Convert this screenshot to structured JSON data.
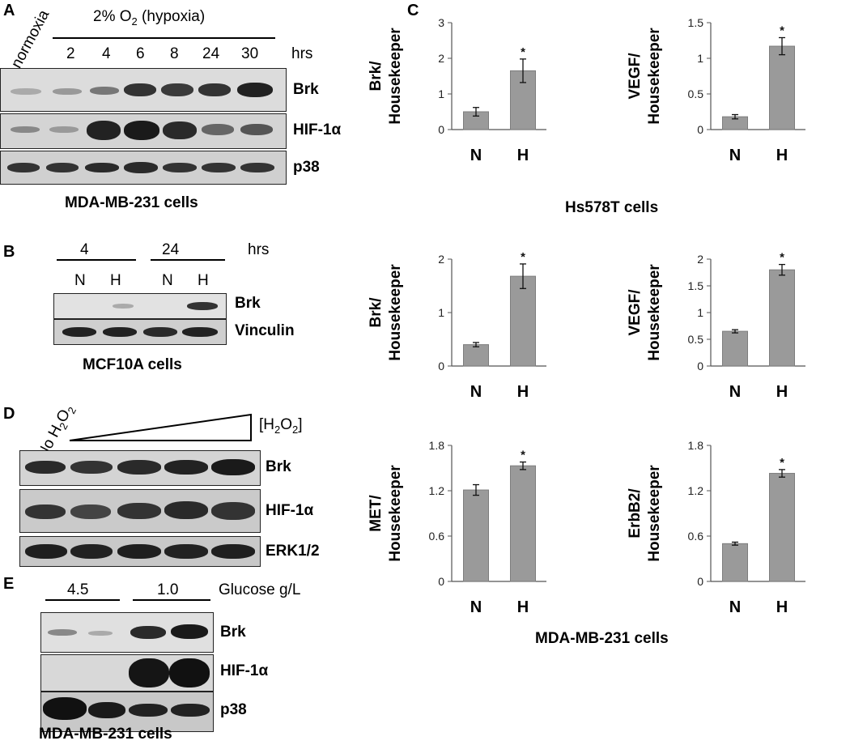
{
  "panels": {
    "A": {
      "letter": "A",
      "normoxia_label": "normoxia",
      "hypoxia_label_pre": "2% O",
      "hypoxia_label_sub": "2",
      "hypoxia_label_post": " (hypoxia)",
      "timepoints": [
        "2",
        "4",
        "6",
        "8",
        "24",
        "30"
      ],
      "unit": "hrs",
      "blots": [
        "Brk",
        "HIF-1α",
        "p38"
      ],
      "cell_line": "MDA-MB-231 cells"
    },
    "B": {
      "letter": "B",
      "time_groups": [
        "4",
        "24"
      ],
      "unit": "hrs",
      "lanes": [
        "N",
        "H",
        "N",
        "H"
      ],
      "blots": [
        "Brk",
        "Vinculin"
      ],
      "cell_line": "MCF10A cells"
    },
    "C": {
      "letter": "C",
      "hs578t_label": "Hs578T cells",
      "mda_label": "MDA-MB-231 cells"
    },
    "D": {
      "letter": "D",
      "no_h2o2_pre": "No H",
      "no_h2o2_sub1": "2",
      "no_h2o2_mid": "O",
      "no_h2o2_sub2": "2",
      "conc_pre": "[H",
      "conc_sub1": "2",
      "conc_mid": "O",
      "conc_sub2": "2",
      "conc_post": "]",
      "blots": [
        "Brk",
        "HIF-1α",
        "ERK1/2"
      ]
    },
    "E": {
      "letter": "E",
      "glucose_groups": [
        "4.5",
        "1.0"
      ],
      "glucose_unit": "Glucose g/L",
      "blots": [
        "Brk",
        "HIF-1α",
        "p38"
      ],
      "cell_line": "MDA-MB-231 cells"
    }
  },
  "chart_data": [
    {
      "type": "bar",
      "id": "hs578t-brk",
      "categories": [
        "N",
        "H"
      ],
      "values": [
        0.5,
        1.65
      ],
      "errors": [
        0.12,
        0.33
      ],
      "significance": [
        "",
        "*"
      ],
      "ylabel_line1": "Brk/",
      "ylabel_line2": "Housekeeper",
      "ylim": [
        0,
        3
      ],
      "yticks": [
        "0",
        "1",
        "2",
        "3"
      ],
      "yticks_values": [
        0,
        1,
        2,
        3
      ]
    },
    {
      "type": "bar",
      "id": "hs578t-vegf",
      "categories": [
        "N",
        "H"
      ],
      "values": [
        0.18,
        1.17
      ],
      "errors": [
        0.03,
        0.12
      ],
      "significance": [
        "",
        "*"
      ],
      "ylabel_line1": "VEGF/",
      "ylabel_line2": "Housekeeper",
      "ylim": [
        0,
        1.5
      ],
      "yticks": [
        "0",
        "0.5",
        "1",
        "1.5"
      ],
      "yticks_values": [
        0,
        0.5,
        1,
        1.5
      ]
    },
    {
      "type": "bar",
      "id": "mda-brk",
      "categories": [
        "N",
        "H"
      ],
      "values": [
        0.4,
        1.68
      ],
      "errors": [
        0.04,
        0.23
      ],
      "significance": [
        "",
        "*"
      ],
      "ylabel_line1": "Brk/",
      "ylabel_line2": "Housekeeper",
      "ylim": [
        0,
        2
      ],
      "yticks": [
        "0",
        "1",
        "2"
      ],
      "yticks_values": [
        0,
        1,
        2
      ]
    },
    {
      "type": "bar",
      "id": "mda-vegf",
      "categories": [
        "N",
        "H"
      ],
      "values": [
        0.65,
        1.8
      ],
      "errors": [
        0.03,
        0.1
      ],
      "significance": [
        "",
        "*"
      ],
      "ylabel_line1": "VEGF/",
      "ylabel_line2": "Housekeeper",
      "ylim": [
        0,
        2
      ],
      "yticks": [
        "0",
        "0.5",
        "1",
        "1.5",
        "2"
      ],
      "yticks_values": [
        0,
        0.5,
        1,
        1.5,
        2
      ]
    },
    {
      "type": "bar",
      "id": "mda-met",
      "categories": [
        "N",
        "H"
      ],
      "values": [
        1.21,
        1.53
      ],
      "errors": [
        0.07,
        0.05
      ],
      "significance": [
        "",
        "*"
      ],
      "ylabel_line1": "MET/",
      "ylabel_line2": "Housekeeper",
      "ylim": [
        0,
        1.8
      ],
      "yticks": [
        "0",
        "0.6",
        "1.2",
        "1.8"
      ],
      "yticks_values": [
        0,
        0.6,
        1.2,
        1.8
      ]
    },
    {
      "type": "bar",
      "id": "mda-erbb2",
      "categories": [
        "N",
        "H"
      ],
      "values": [
        0.5,
        1.43
      ],
      "errors": [
        0.02,
        0.05
      ],
      "significance": [
        "",
        "*"
      ],
      "ylabel_line1": "ErbB2/",
      "ylabel_line2": "Housekeeper",
      "ylim": [
        0,
        1.8
      ],
      "yticks": [
        "0",
        "0.6",
        "1.2",
        "1.8"
      ],
      "yticks_values": [
        0,
        0.6,
        1.2,
        1.8
      ]
    }
  ],
  "colors": {
    "bar": "#9a9a9a",
    "bar_edge": "#7d7d7d",
    "blot_bg": "#d8d8d8"
  }
}
